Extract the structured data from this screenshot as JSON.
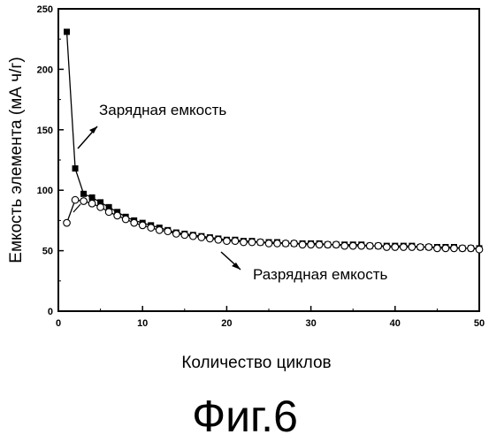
{
  "chart_data": {
    "type": "scatter",
    "title": "",
    "xlabel": "Количество циклов",
    "ylabel": "Емкость элемента (мА ч/г)",
    "xlim": [
      0,
      50
    ],
    "ylim": [
      0,
      250
    ],
    "xticks": [
      0,
      10,
      20,
      30,
      40,
      50
    ],
    "yticks": [
      0,
      50,
      100,
      150,
      200,
      250
    ],
    "grid": false,
    "series": [
      {
        "name": "Зарядная емкость",
        "marker": "filled-square",
        "connected": true,
        "color": "#000000",
        "x": [
          1,
          2,
          3,
          4,
          5,
          6,
          7,
          8,
          9,
          10,
          11,
          12,
          13,
          14,
          15,
          16,
          17,
          18,
          19,
          20,
          21,
          22,
          23,
          24,
          25,
          26,
          27,
          28,
          29,
          30,
          31,
          32,
          33,
          34,
          35,
          36,
          37,
          38,
          39,
          40,
          41,
          42,
          43,
          44,
          45,
          46,
          47,
          48,
          49,
          50
        ],
        "y": [
          231,
          118,
          97,
          94,
          90,
          86,
          82,
          78,
          75,
          73,
          71,
          69,
          67,
          65,
          64,
          63,
          62,
          61,
          60,
          59,
          59,
          58,
          58,
          57,
          57,
          57,
          56,
          56,
          56,
          56,
          56,
          55,
          55,
          55,
          55,
          55,
          54,
          54,
          54,
          54,
          54,
          54,
          53,
          53,
          53,
          53,
          53,
          52,
          52,
          52
        ]
      },
      {
        "name": "Разрядная емкость",
        "marker": "open-circle",
        "connected": true,
        "color": "#000000",
        "x": [
          1,
          2,
          3,
          4,
          5,
          6,
          7,
          8,
          9,
          10,
          11,
          12,
          13,
          14,
          15,
          16,
          17,
          18,
          19,
          20,
          21,
          22,
          23,
          24,
          25,
          26,
          27,
          28,
          29,
          30,
          31,
          32,
          33,
          34,
          35,
          36,
          37,
          38,
          39,
          40,
          41,
          42,
          43,
          44,
          45,
          46,
          47,
          48,
          49,
          50
        ],
        "y": [
          73,
          92,
          91,
          89,
          86,
          82,
          79,
          76,
          73,
          71,
          69,
          67,
          66,
          64,
          63,
          62,
          61,
          60,
          59,
          58,
          58,
          57,
          57,
          57,
          56,
          56,
          56,
          56,
          55,
          55,
          55,
          55,
          55,
          54,
          54,
          54,
          54,
          54,
          53,
          53,
          53,
          53,
          53,
          53,
          52,
          52,
          52,
          52,
          52,
          51
        ]
      }
    ],
    "annotations": [
      {
        "text": "Зарядная емкость",
        "points_to_series": 0
      },
      {
        "text": "Разрядная емкость",
        "points_to_series": 1
      }
    ]
  },
  "figure_label": "Фиг.6"
}
